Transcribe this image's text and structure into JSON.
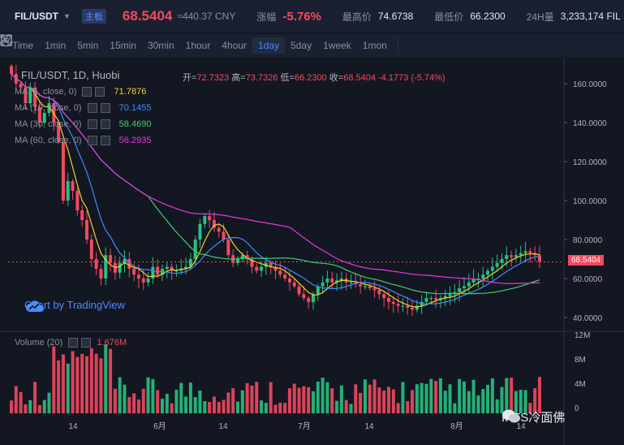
{
  "ticker": {
    "pair": "FIL/USDT",
    "main_tag": "主板",
    "last_price": "68.5404",
    "cny": "≈440.37 CNY",
    "change_label": "涨幅",
    "change_value": "-5.76%",
    "high_label": "最高价",
    "high_value": "74.6738",
    "low_label": "最低价",
    "low_value": "66.2300",
    "volume_label": "24H量",
    "volume_value": "3,233,174 FIL"
  },
  "toolbar": {
    "intervals": [
      "Time",
      "1min",
      "5min",
      "15min",
      "30min",
      "1hour",
      "4hour",
      "1day",
      "5day",
      "1week",
      "1mon"
    ],
    "active_interval": "1day",
    "icons": [
      "indicator-icon",
      "settings-icon",
      "fullscreen-icon",
      "close-icon"
    ]
  },
  "chart": {
    "title": "FIL/USDT, 1D, Huobi",
    "ohlc": {
      "open_label": "开=",
      "open": "72.7323",
      "high_label": "高=",
      "high": "73.7326",
      "low_label": "低=",
      "low": "66.2300",
      "close_label": "收=",
      "close": "68.5404",
      "change": "-4.1773 (-5.74%)"
    },
    "ma": [
      {
        "label": "MA (5, close, 0)",
        "value": "71.7876",
        "color": "#f5d327"
      },
      {
        "label": "MA (10, close, 0)",
        "value": "70.1455",
        "color": "#3f8cff"
      },
      {
        "label": "MA (30, close, 0)",
        "value": "58.4690",
        "color": "#3bd16f"
      },
      {
        "label": "MA (60, close, 0)",
        "value": "56.2935",
        "color": "#e838e0"
      }
    ],
    "price_axis": [
      "160.0000",
      "140.0000",
      "120.0000",
      "100.0000",
      "80.0000",
      "60.0000",
      "40.0000"
    ],
    "current_price_tag": "68.5404",
    "tv_logo": "Chart by TradingView",
    "volume_title": "Volume (20)",
    "volume_value": "1.676M",
    "volume_axis": [
      "12M",
      "8M",
      "4M",
      "0"
    ],
    "time_axis": [
      "14",
      "6月",
      "14",
      "7月",
      "14",
      "8月",
      "14"
    ],
    "up_color": "#26c281",
    "down_color": "#f4485f"
  },
  "watermark": "IPFS冷面佛",
  "chart_data": {
    "type": "candlestick",
    "title": "FIL/USDT, 1D, Huobi",
    "ylim": [
      35,
      170
    ],
    "closes": [
      165,
      160,
      158,
      150,
      158,
      148,
      140,
      145,
      150,
      140,
      130,
      100,
      110,
      105,
      95,
      90,
      80,
      70,
      65,
      60,
      72,
      68,
      63,
      68,
      70,
      65,
      62,
      60,
      58,
      60,
      66,
      62,
      65,
      66,
      64,
      64,
      65,
      66,
      70,
      80,
      88,
      92,
      90,
      86,
      84,
      80,
      72,
      68,
      70,
      72,
      70,
      66,
      64,
      66,
      68,
      66,
      64,
      62,
      60,
      58,
      56,
      52,
      50,
      48,
      52,
      56,
      58,
      60,
      58,
      59,
      60,
      58,
      58,
      57,
      56,
      56,
      55,
      54,
      52,
      50,
      48,
      47,
      46,
      46,
      45,
      44,
      46,
      48,
      50,
      50,
      49,
      50,
      51,
      52,
      53,
      55,
      56,
      58,
      60,
      60,
      62,
      64,
      66,
      68,
      70,
      72,
      71,
      72,
      73,
      74,
      73,
      72,
      68.54
    ]
  }
}
